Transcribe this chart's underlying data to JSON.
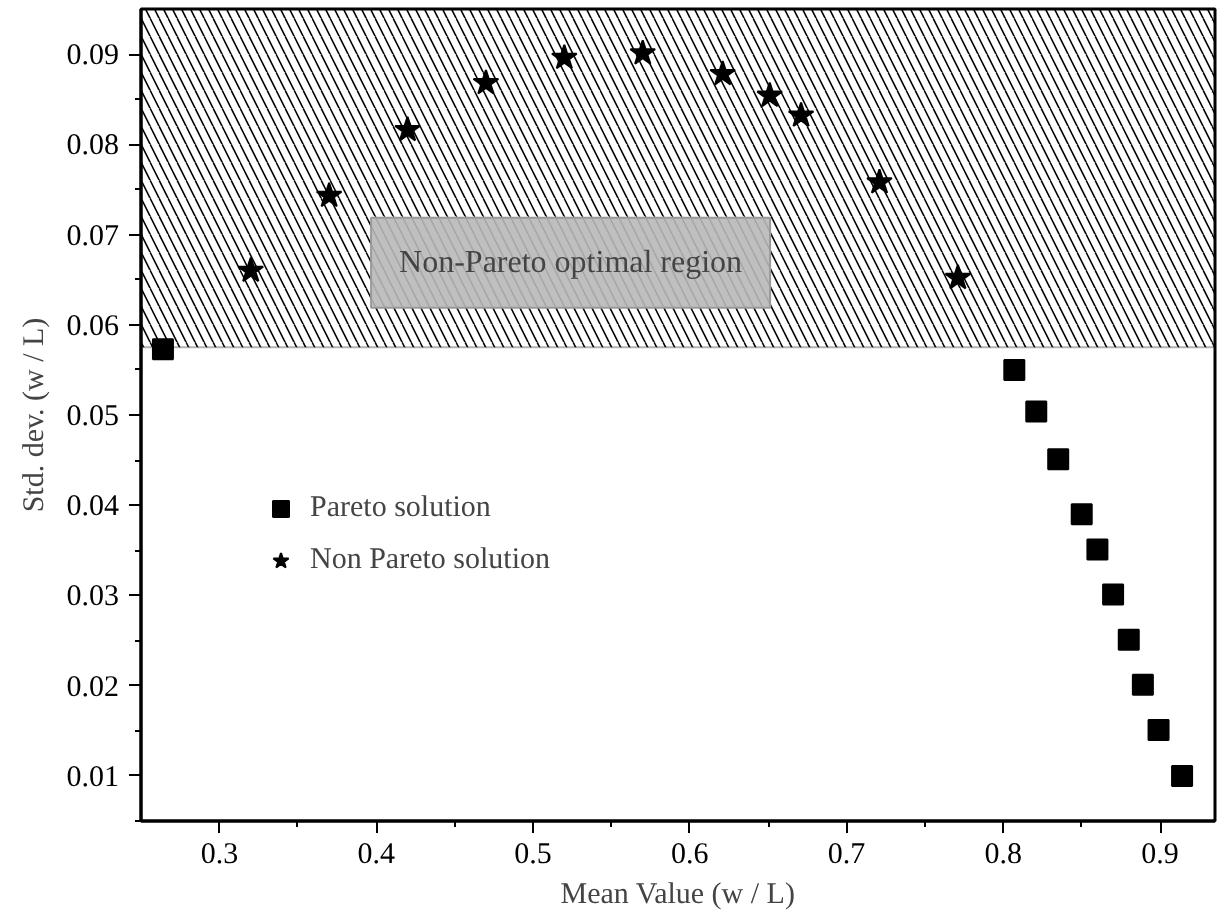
{
  "chart_data": {
    "type": "scatter",
    "xlabel": "Mean Value (w / L)",
    "ylabel": "Std. dev. (w / L)",
    "xlim": [
      0.25,
      0.935
    ],
    "ylim": [
      0.005,
      0.095
    ],
    "xticks": [
      0.3,
      0.4,
      0.5,
      0.6,
      0.7,
      0.8,
      0.9
    ],
    "yticks": [
      0.01,
      0.02,
      0.03,
      0.04,
      0.05,
      0.06,
      0.07,
      0.08,
      0.09
    ],
    "grid": false,
    "legend": "left",
    "series": [
      {
        "name": "Pareto solution",
        "color": "#000000",
        "marker": "square",
        "x": [
          0.264,
          0.807,
          0.821,
          0.835,
          0.85,
          0.86,
          0.87,
          0.88,
          0.889,
          0.899,
          0.914
        ],
        "values": [
          0.0573,
          0.055,
          0.0504,
          0.0451,
          0.039,
          0.0351,
          0.0301,
          0.0251,
          0.0201,
          0.0151,
          0.01
        ]
      },
      {
        "name": "Non Pareto solution",
        "color": "#000000",
        "marker": "star",
        "x": [
          0.32,
          0.37,
          0.42,
          0.47,
          0.52,
          0.57,
          0.621,
          0.651,
          0.671,
          0.721,
          0.771
        ],
        "values": [
          0.066,
          0.0743,
          0.0816,
          0.0868,
          0.0896,
          0.0901,
          0.0878,
          0.0854,
          0.0832,
          0.0758,
          0.0652
        ]
      }
    ],
    "bands": [
      {
        "axis": "y",
        "from": 0.0575,
        "to": 0.095,
        "label": "Non-Pareto optimal region",
        "color": "#000000"
      }
    ]
  }
}
